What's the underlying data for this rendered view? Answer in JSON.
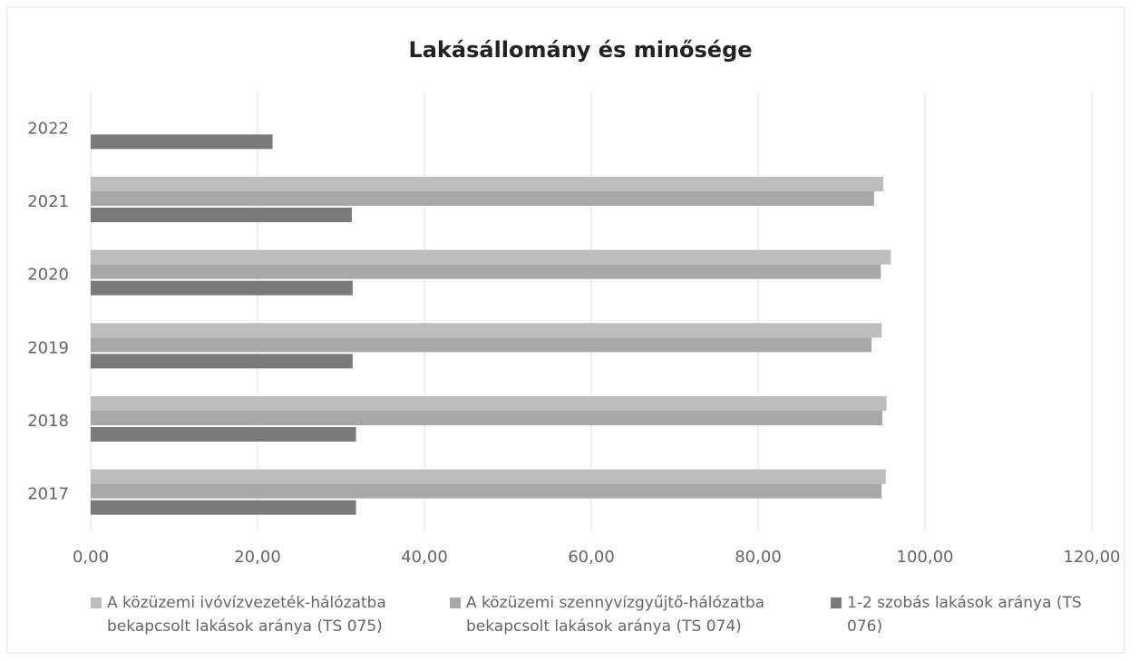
{
  "chart_data": {
    "type": "barh",
    "title": "Lakásállomány és minősége",
    "categories": [
      "2017",
      "2018",
      "2019",
      "2020",
      "2021",
      "2022"
    ],
    "series": [
      {
        "name": "A közüzemi ivóvízvezeték-hálózatba bekapcsolt lakások aránya (TS 075)",
        "color": "#bdbdbd",
        "values": [
          95.3,
          95.4,
          94.8,
          95.9,
          95.0,
          null
        ]
      },
      {
        "name": "A közüzemi szennyvízgyűjtő-hálózatba bekapcsolt lakások aránya (TS 074)",
        "color": "#a8a8a8",
        "values": [
          94.8,
          94.9,
          93.6,
          94.7,
          93.9,
          null
        ]
      },
      {
        "name": "1-2 szobás lakások aránya (TS 076)",
        "color": "#7a7a7a",
        "values": [
          31.8,
          31.8,
          31.4,
          31.4,
          31.3,
          21.8
        ]
      }
    ],
    "xlim": [
      0,
      120
    ],
    "xticks": [
      {
        "value": 0,
        "label": "0,00"
      },
      {
        "value": 20,
        "label": "20,00"
      },
      {
        "value": 40,
        "label": "40,00"
      },
      {
        "value": 60,
        "label": "60,00"
      },
      {
        "value": 80,
        "label": "80,00"
      },
      {
        "value": 100,
        "label": "100,00"
      },
      {
        "value": 120,
        "label": "120,00"
      }
    ],
    "grid": true,
    "legend": "bottom"
  }
}
